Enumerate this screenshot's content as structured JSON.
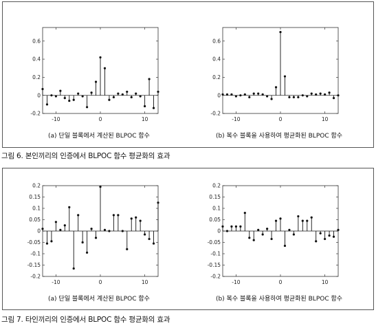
{
  "figures": [
    {
      "caption": "그림 6. 본인끼리의 인증에서 BLPOC 함수 평균화의 효과",
      "subcaptions": [
        "(a) 단일 블록에서 계산된 BLPOC 함수",
        "(b) 복수 블록을 사용하여 평균화된 BLPOC 함수"
      ]
    },
    {
      "caption": "그림 7. 타인끼리의 인증에서 BLPOC 함수 평균화의 효과",
      "subcaptions": [
        "(a) 단일 블록에서 계산된 BLPOC 함수",
        "(b) 복수 블록을 사용하여 평균화된 BLPOC 함수"
      ]
    }
  ],
  "chart_data": [
    {
      "type": "stem",
      "title": "(a) 단일 블록에서 계산된 BLPOC 함수",
      "xlim": [
        -13,
        13
      ],
      "ylim": [
        -0.2,
        0.75
      ],
      "xticks": [
        -10,
        0,
        10
      ],
      "yticks": [
        -0.2,
        0,
        0.2,
        0.4,
        0.6
      ],
      "ytick_labels": [
        "-0.2",
        "0",
        "0.2",
        "0.4",
        "0.6"
      ],
      "x": [
        -13,
        -12,
        -11,
        -10,
        -9,
        -8,
        -7,
        -6,
        -5,
        -4,
        -3,
        -2,
        -1,
        0,
        1,
        2,
        3,
        4,
        5,
        6,
        7,
        8,
        9,
        10,
        11,
        12,
        13
      ],
      "values": [
        0.07,
        -0.1,
        0.0,
        -0.01,
        0.05,
        -0.03,
        -0.06,
        -0.05,
        0.02,
        -0.01,
        -0.13,
        0.03,
        0.15,
        0.42,
        0.3,
        -0.05,
        -0.02,
        0.02,
        0.01,
        0.04,
        -0.02,
        0.02,
        -0.01,
        -0.12,
        0.18,
        -0.14,
        0.04
      ]
    },
    {
      "type": "stem",
      "title": "(b) 복수 블록을 사용하여 평균화된 BLPOC 함수",
      "xlim": [
        -13,
        13
      ],
      "ylim": [
        -0.2,
        0.75
      ],
      "xticks": [
        -10,
        0,
        10
      ],
      "yticks": [
        -0.2,
        0,
        0.2,
        0.4,
        0.6
      ],
      "ytick_labels": [
        "-0.2",
        "0",
        "0.2",
        "0.4",
        "0.6"
      ],
      "x": [
        -13,
        -12,
        -11,
        -10,
        -9,
        -8,
        -7,
        -6,
        -5,
        -4,
        -3,
        -2,
        -1,
        0,
        1,
        2,
        3,
        4,
        5,
        6,
        7,
        8,
        9,
        10,
        11,
        12,
        13
      ],
      "values": [
        0.01,
        0.01,
        0.01,
        -0.01,
        0.0,
        0.01,
        -0.02,
        0.02,
        0.02,
        0.01,
        -0.01,
        -0.04,
        0.09,
        0.7,
        0.21,
        -0.02,
        -0.02,
        -0.02,
        0.0,
        -0.01,
        0.02,
        0.01,
        0.02,
        0.01,
        0.03,
        -0.03,
        0.0
      ]
    },
    {
      "type": "stem",
      "title": "(a) 단일 블록에서 계산된 BLPOC 함수",
      "xlim": [
        -13,
        13
      ],
      "ylim": [
        -0.2,
        0.2
      ],
      "xticks": [
        -10,
        0,
        10
      ],
      "yticks": [
        -0.2,
        -0.15,
        -0.1,
        -0.05,
        0,
        0.05,
        0.1,
        0.15,
        0.2
      ],
      "ytick_labels": [
        "-0.2",
        "-0.15",
        "-0.1",
        "-0.05",
        "0",
        "0.05",
        "0.1",
        "0.15",
        "0.2"
      ],
      "x": [
        -13,
        -12,
        -11,
        -10,
        -9,
        -8,
        -7,
        -6,
        -5,
        -4,
        -3,
        -2,
        -1,
        0,
        1,
        2,
        3,
        4,
        5,
        6,
        7,
        8,
        9,
        10,
        11,
        12,
        13
      ],
      "values": [
        0.01,
        -0.055,
        -0.045,
        0.04,
        0.005,
        0.025,
        0.105,
        -0.165,
        0.07,
        -0.05,
        -0.095,
        0.01,
        -0.03,
        0.195,
        0.005,
        0.0,
        0.07,
        0.07,
        0.0,
        -0.08,
        0.055,
        0.06,
        0.045,
        -0.015,
        -0.035,
        -0.055,
        0.125
      ]
    },
    {
      "type": "stem",
      "title": "(b) 복수 블록을 사용하여 평균화된 BLPOC 함수",
      "xlim": [
        -13,
        13
      ],
      "ylim": [
        -0.2,
        0.2
      ],
      "xticks": [
        -10,
        0,
        10
      ],
      "yticks": [
        -0.2,
        -0.15,
        -0.1,
        -0.05,
        0,
        0.05,
        0.1,
        0.15,
        0.2
      ],
      "ytick_labels": [
        "-0.2",
        "-0.15",
        "-0.1",
        "-0.05",
        "0",
        "0.05",
        "0.1",
        "0.15",
        "0.2"
      ],
      "x": [
        -13,
        -12,
        -11,
        -10,
        -9,
        -8,
        -7,
        -6,
        -5,
        -4,
        -3,
        -2,
        -1,
        0,
        1,
        2,
        3,
        4,
        5,
        6,
        7,
        8,
        9,
        10,
        11,
        12,
        13
      ],
      "values": [
        0.02,
        0.0,
        0.02,
        0.02,
        0.02,
        0.08,
        -0.03,
        -0.04,
        0.005,
        -0.015,
        0.01,
        -0.035,
        0.045,
        0.055,
        -0.065,
        0.005,
        -0.015,
        0.065,
        0.045,
        0.045,
        0.06,
        -0.045,
        -0.01,
        -0.035,
        -0.02,
        -0.025,
        0.005
      ]
    }
  ]
}
